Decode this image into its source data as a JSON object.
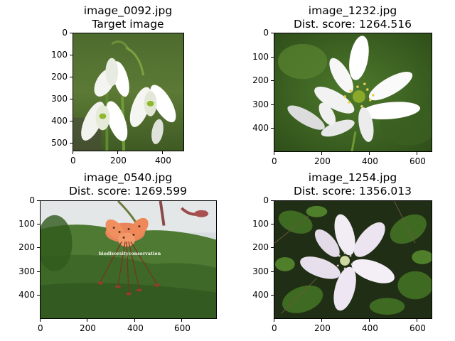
{
  "panels": [
    {
      "filename": "image_0092.jpg",
      "subtitle": "Target image",
      "image_description": "white snowdrop flowers on dark green background",
      "x_ticks": [
        "0",
        "200",
        "400"
      ],
      "y_ticks": [
        "0",
        "100",
        "200",
        "300",
        "400",
        "500"
      ]
    },
    {
      "filename": "image_1232.jpg",
      "subtitle": "Dist. score: 1264.516",
      "image_description": "white wood anemone flower on green background",
      "x_ticks": [
        "0",
        "200",
        "400",
        "600"
      ],
      "y_ticks": [
        "0",
        "100",
        "200",
        "300",
        "400"
      ]
    },
    {
      "filename": "image_0540.jpg",
      "subtitle": "Dist. score: 1269.599",
      "image_description": "orange tiger lily over forested hillside",
      "watermark": "biodiversityconservation",
      "x_ticks": [
        "0",
        "200",
        "400",
        "600"
      ],
      "y_ticks": [
        "0",
        "100",
        "200",
        "300",
        "400"
      ]
    },
    {
      "filename": "image_1254.jpg",
      "subtitle": "Dist. score: 1356.013",
      "image_description": "pale pink anemone flower among green leaves",
      "x_ticks": [
        "0",
        "200",
        "400",
        "600"
      ],
      "y_ticks": [
        "0",
        "100",
        "200",
        "300",
        "400"
      ]
    }
  ]
}
